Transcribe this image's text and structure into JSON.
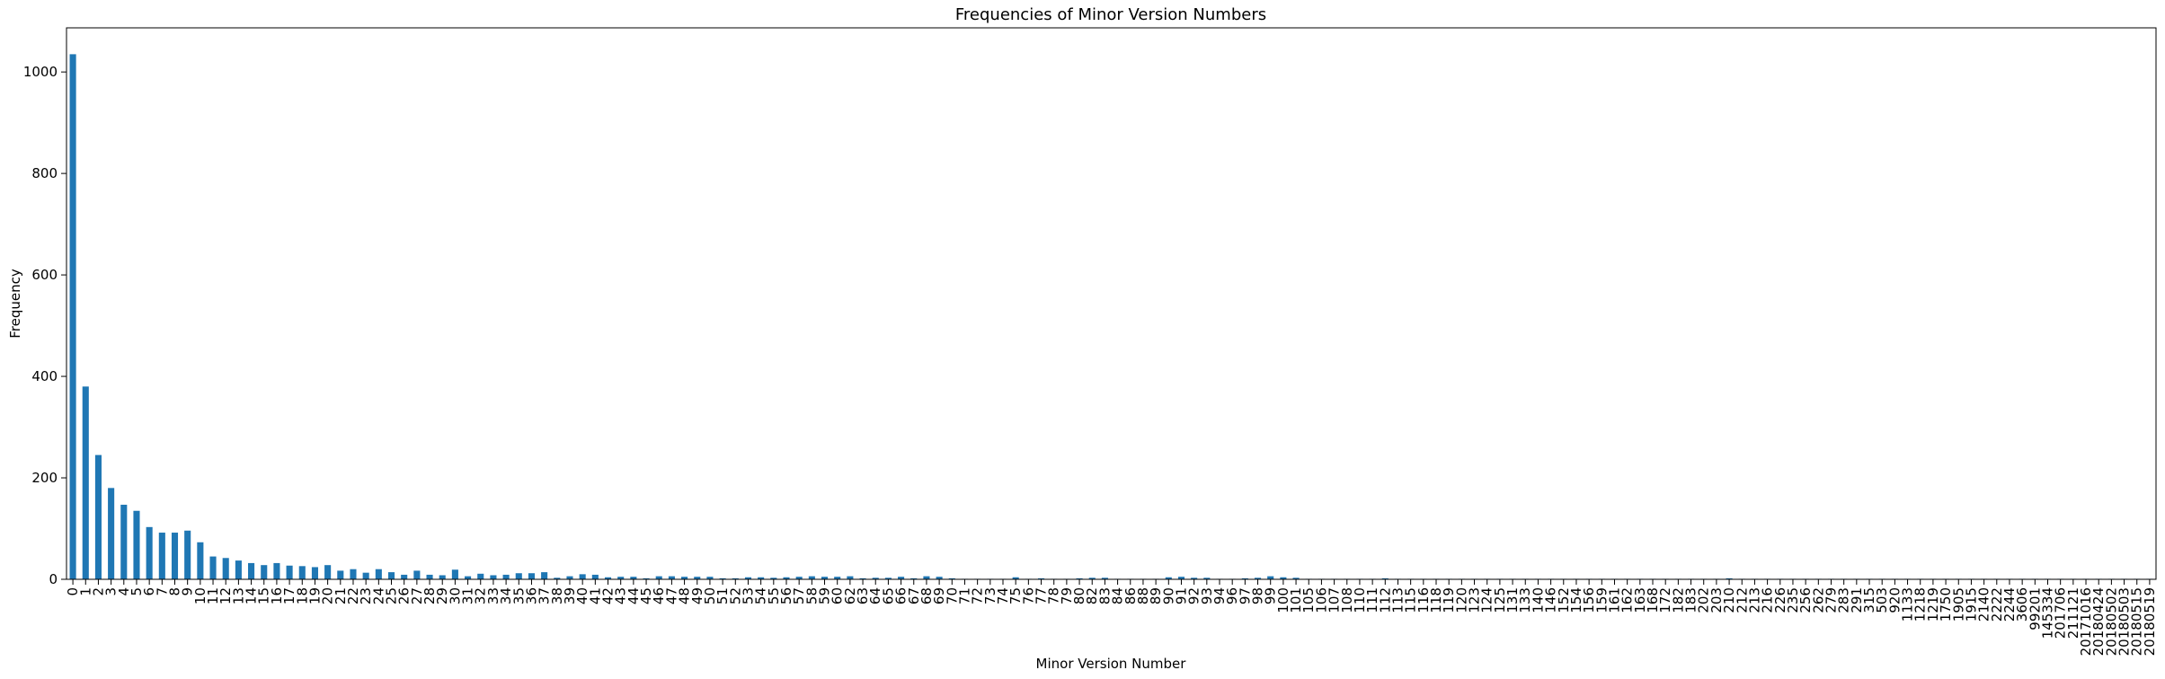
{
  "chart_data": {
    "type": "bar",
    "title": "Frequencies of Minor Version Numbers",
    "xlabel": "Minor Version Number",
    "ylabel": "Frequency",
    "color": "#1f77b4",
    "categories": [
      "0",
      "1",
      "2",
      "3",
      "4",
      "5",
      "6",
      "7",
      "8",
      "9",
      "10",
      "11",
      "12",
      "13",
      "14",
      "15",
      "16",
      "17",
      "18",
      "19",
      "20",
      "21",
      "22",
      "23",
      "24",
      "25",
      "26",
      "27",
      "28",
      "29",
      "30",
      "31",
      "32",
      "33",
      "34",
      "35",
      "36",
      "37",
      "38",
      "39",
      "40",
      "41",
      "42",
      "43",
      "44",
      "45",
      "46",
      "47",
      "48",
      "49",
      "50",
      "51",
      "52",
      "53",
      "54",
      "55",
      "56",
      "57",
      "58",
      "59",
      "60",
      "62",
      "63",
      "64",
      "65",
      "66",
      "67",
      "68",
      "69",
      "70",
      "71",
      "72",
      "73",
      "74",
      "75",
      "76",
      "77",
      "78",
      "79",
      "80",
      "82",
      "83",
      "84",
      "86",
      "88",
      "89",
      "90",
      "91",
      "92",
      "93",
      "94",
      "96",
      "97",
      "98",
      "99",
      "100",
      "101",
      "105",
      "106",
      "107",
      "108",
      "110",
      "111",
      "112",
      "113",
      "115",
      "116",
      "118",
      "119",
      "120",
      "123",
      "124",
      "125",
      "131",
      "133",
      "140",
      "146",
      "152",
      "154",
      "156",
      "159",
      "161",
      "162",
      "163",
      "168",
      "172",
      "182",
      "183",
      "202",
      "203",
      "210",
      "212",
      "213",
      "216",
      "226",
      "235",
      "256",
      "262",
      "279",
      "283",
      "291",
      "315",
      "503",
      "920",
      "1133",
      "1218",
      "1219",
      "1750",
      "1905",
      "1915",
      "2140",
      "2222",
      "2244",
      "3606",
      "99201",
      "145334",
      "201706",
      "211121",
      "20171016",
      "20180424",
      "20180502",
      "20180503",
      "20180515",
      "20180519"
    ],
    "values": [
      1035,
      380,
      245,
      180,
      147,
      135,
      103,
      92,
      92,
      96,
      73,
      45,
      42,
      37,
      32,
      28,
      32,
      27,
      26,
      24,
      28,
      17,
      20,
      13,
      20,
      14,
      9,
      17,
      9,
      8,
      19,
      6,
      11,
      8,
      9,
      12,
      12,
      14,
      3,
      6,
      10,
      9,
      4,
      5,
      5,
      2,
      6,
      6,
      5,
      5,
      5,
      2,
      2,
      4,
      4,
      3,
      4,
      5,
      6,
      5,
      5,
      6,
      2,
      3,
      3,
      5,
      2,
      6,
      5,
      2,
      1,
      1,
      1,
      1,
      4,
      1,
      2,
      1,
      1,
      2,
      3,
      3,
      1,
      1,
      1,
      1,
      4,
      5,
      3,
      3,
      1,
      1,
      2,
      3,
      6,
      4,
      3,
      1,
      1,
      1,
      1,
      1,
      1,
      2,
      1,
      1,
      1,
      1,
      1,
      1,
      1,
      1,
      1,
      1,
      1,
      1,
      1,
      1,
      1,
      1,
      1,
      1,
      1,
      1,
      1,
      1,
      1,
      1,
      1,
      1,
      2,
      1,
      1,
      1,
      1,
      1,
      1,
      1,
      1,
      1,
      1,
      1,
      1,
      1,
      1,
      1,
      1,
      1,
      1,
      1,
      1,
      1,
      1,
      1,
      1,
      1,
      1,
      1,
      1,
      1,
      1,
      1,
      1,
      1
    ],
    "ylim": [
      0,
      1087
    ],
    "yticks": [
      0,
      200,
      400,
      600,
      800,
      1000
    ]
  }
}
